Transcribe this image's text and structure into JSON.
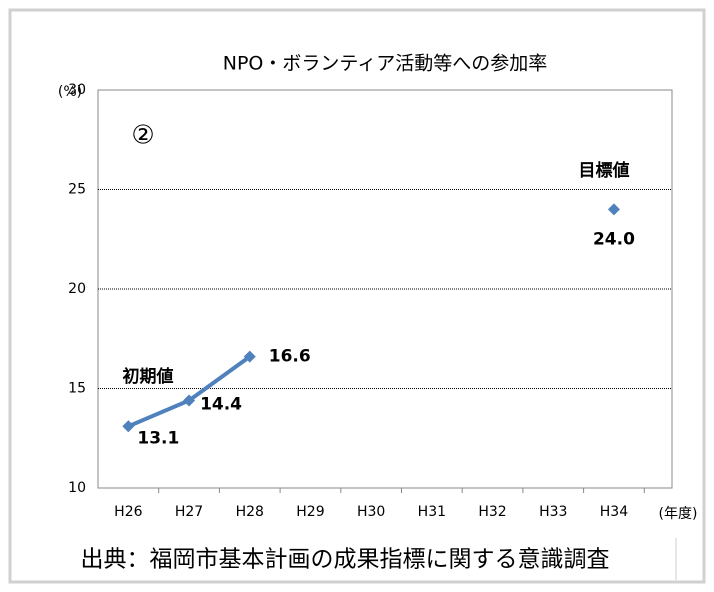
{
  "chart_data": {
    "type": "line",
    "title": "NPO・ボランティア活動等への参加率",
    "y_label": "(%)",
    "x_label": "(年度)",
    "annotations": [
      "②",
      "初期値",
      "目標値"
    ],
    "source": "出典：福岡市基本計画の成果指標に関する意識調査",
    "categories": [
      "H26",
      "H27",
      "H28",
      "H29",
      "H30",
      "H31",
      "H32",
      "H33",
      "H34"
    ],
    "series": [
      {
        "color": "#4f81bd",
        "values": [
          13.1,
          14.4,
          16.6,
          null,
          null,
          null,
          null,
          null,
          null
        ],
        "line": true
      },
      {
        "color": "#4f81bd",
        "values": [
          null,
          null,
          null,
          null,
          null,
          null,
          null,
          null,
          24
        ],
        "value_labels": [
          null,
          null,
          null,
          null,
          null,
          null,
          null,
          null,
          "24.0"
        ],
        "line": false
      }
    ],
    "ylim": [
      10,
      30
    ],
    "yticks": [
      10,
      15,
      20,
      25,
      30
    ],
    "grid": true
  }
}
